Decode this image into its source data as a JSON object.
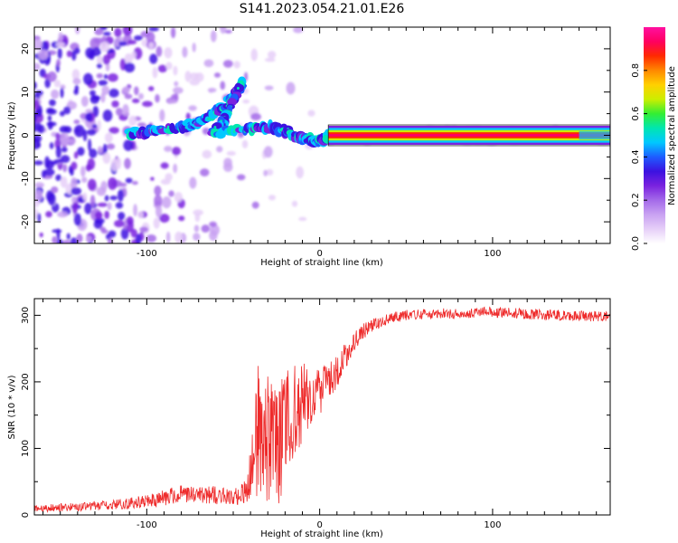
{
  "title": "S141.2023.054.21.01.E26",
  "colors": {
    "snr_line": "#ee2a2a",
    "colormap": [
      "#ffffff",
      "#e6cff8",
      "#c9a2f2",
      "#a46ae9",
      "#7a22df",
      "#3c12e0",
      "#1e5cff",
      "#00c8ff",
      "#00e6b0",
      "#33ee33",
      "#ccee00",
      "#ffd000",
      "#ff8800",
      "#ff2a00",
      "#ff0060",
      "#ff10a0"
    ]
  },
  "chart_data": [
    {
      "type": "heatmap",
      "xlabel": "Height of straight line (km)",
      "ylabel": "Frequency (Hz)",
      "xlim": [
        -165,
        168
      ],
      "ylim": [
        -25,
        25
      ],
      "xticks": [
        -100,
        0,
        100
      ],
      "yticks": [
        -20,
        -10,
        0,
        10,
        20
      ],
      "colorbar": {
        "label": "Normalized spectral amplitude",
        "range": [
          0,
          1
        ],
        "ticks": [
          "0.0",
          "0.2",
          "0.4",
          "0.6",
          "0.8"
        ]
      },
      "ridge": {
        "points": [
          [
            -110,
            0.5
          ],
          [
            -95,
            1.0
          ],
          [
            -80,
            2.0
          ],
          [
            -70,
            3.0
          ],
          [
            -60,
            5.5
          ],
          [
            -50,
            8.5
          ],
          [
            -45,
            12.0
          ],
          [
            -55,
            3.5
          ],
          [
            -62,
            0.5
          ],
          [
            -40,
            1.5
          ],
          [
            -30,
            2.0
          ],
          [
            -20,
            1.0
          ],
          [
            -12,
            -0.5
          ],
          [
            -5,
            -1.0
          ],
          [
            0,
            -1.5
          ],
          [
            5,
            0.0
          ],
          [
            168,
            0.0
          ]
        ],
        "steady_from_x": 5,
        "steady_frequency": 0.0
      }
    },
    {
      "type": "line",
      "xlabel": "Height of straight line (km)",
      "ylabel": "SNR (10 * v/v)",
      "xlim": [
        -165,
        168
      ],
      "ylim": [
        0,
        325
      ],
      "xticks": [
        -100,
        0,
        100
      ],
      "yticks": [
        0,
        100,
        200,
        300
      ],
      "series": [
        {
          "x": [
            -165,
            -140,
            -120,
            -100,
            -80,
            -60,
            -50,
            -42,
            -38,
            -35,
            -30,
            -25,
            -20,
            -15,
            -10,
            -5,
            0,
            5,
            10,
            15,
            20,
            25,
            30,
            40,
            50,
            60,
            80,
            100,
            120,
            140,
            168
          ],
          "values": [
            10,
            12,
            15,
            20,
            32,
            30,
            28,
            35,
            80,
            150,
            110,
            100,
            130,
            160,
            170,
            180,
            185,
            200,
            215,
            240,
            260,
            275,
            285,
            295,
            300,
            302,
            303,
            305,
            302,
            300,
            298
          ],
          "noise": [
            6,
            6,
            7,
            10,
            14,
            14,
            12,
            20,
            70,
            110,
            100,
            95,
            90,
            80,
            60,
            45,
            35,
            30,
            25,
            20,
            15,
            12,
            10,
            8,
            8,
            8,
            8,
            8,
            8,
            8,
            8
          ]
        }
      ]
    }
  ]
}
